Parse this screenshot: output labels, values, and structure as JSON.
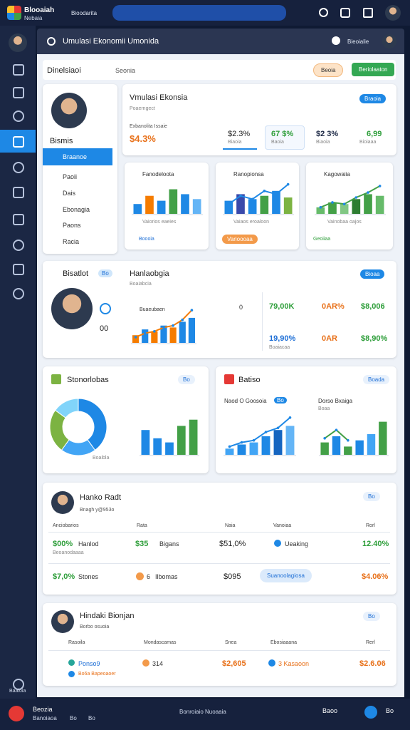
{
  "topbar": {
    "logo_title": "Blooaiah",
    "logo_sub": "Nebaia",
    "tab": "Bioodarita"
  },
  "header": {
    "title": "Umulasi Ekonomii Umonida",
    "user": "Bieoialie"
  },
  "toolbar": {
    "dropdown": "Dinelsiaoi",
    "search": "Seonia",
    "button1": "Beoia",
    "button2": "Beriolaaton"
  },
  "profile": {
    "name": "Bismis",
    "menu": [
      "Braanoe",
      "Paoii",
      "Dais",
      "Ebonagia",
      "Paons",
      "Racia"
    ]
  },
  "summary": {
    "title": "Vmulasi Ekonsia",
    "subtitle": "Poaerngect",
    "label": "Exbanolita Issaie",
    "value": "$4.3%",
    "button": "Braoia",
    "stats": [
      {
        "value": "$2.3%",
        "label": "Biaoia"
      },
      {
        "value": "67 $%",
        "label": "Baoia"
      },
      {
        "value": "$2 3%",
        "label": "Biaoia"
      },
      {
        "value": "6,99",
        "label": "Bioiaaa"
      }
    ]
  },
  "mini_charts": [
    {
      "title": "Fanodeloota",
      "footer": "Vaiorios eaeies",
      "tag": "Boooia",
      "ylim": [
        0,
        100
      ],
      "bars": [
        30,
        55,
        40,
        75,
        60,
        45
      ],
      "colors": [
        "#1e88e5",
        "#f57c00",
        "#1e88e5",
        "#43a047",
        "#1e88e5",
        "#64b5f6"
      ]
    },
    {
      "title": "Ranopionsa",
      "footer": "Vaiaos eroaloon",
      "tag": "Varioooaa",
      "ylim": [
        0,
        100
      ],
      "bars": [
        40,
        60,
        45,
        55,
        70,
        50
      ],
      "line": [
        30,
        55,
        45,
        70,
        60,
        90
      ],
      "colors": [
        "#1e88e5",
        "#3949ab",
        "#1e88e5",
        "#43a047",
        "#1e88e5",
        "#7cb342"
      ]
    },
    {
      "title": "Kagowaiia",
      "footer": "Vainobaa oajos",
      "tag": "Geoiiaa",
      "ylim": [
        0,
        100
      ],
      "bars": [
        20,
        35,
        30,
        45,
        60,
        55
      ],
      "line": [
        20,
        35,
        30,
        50,
        65,
        85
      ],
      "colors": [
        "#66bb6a",
        "#43a047",
        "#81c784",
        "#2e7d32",
        "#43a047",
        "#66bb6a"
      ]
    }
  ],
  "insight": {
    "name": "Bisatlot",
    "tag": "Bo",
    "title": "Hanlaobgia",
    "subtitle": "Boaiabcia",
    "chart_label": "Buaeubaen",
    "button": "Bioaa",
    "count": "00",
    "axis_mark": "0",
    "ylim": [
      0,
      100
    ],
    "bars": [
      20,
      35,
      30,
      45,
      40,
      55,
      65
    ],
    "line": [
      15,
      25,
      30,
      40,
      45,
      60,
      85
    ],
    "colors": [
      "#f57c00",
      "#1e88e5",
      "#f57c00",
      "#1e88e5",
      "#f57c00",
      "#1e88e5",
      "#1e88e5"
    ],
    "metrics": [
      [
        "79,00K",
        "0AR%",
        "$8,006"
      ],
      [
        "19,90%",
        "0AR",
        "$8,90%"
      ]
    ],
    "metric_label": "Boaiacaa"
  },
  "breakdown": {
    "title": "Stonorlobas",
    "tag": "Bo",
    "legend": "Boaibla",
    "donut": [
      40,
      20,
      25,
      15
    ],
    "donut_colors": [
      "#1e88e5",
      "#42a5f5",
      "#7cb342",
      "#81d4fa"
    ],
    "ylim": [
      0,
      100
    ],
    "bars": [
      60,
      40,
      30,
      70,
      85
    ],
    "colors": [
      "#1e88e5",
      "#1e88e5",
      "#1e88e5",
      "#43a047",
      "#43a047"
    ]
  },
  "trends": {
    "title": "Batiso",
    "tag": "Boada",
    "left_title": "Naod O Goosoia",
    "left_tag": "Bo",
    "right_title": "Dorso Bxaiga",
    "right_sub": "Boaa",
    "ylim": [
      0,
      100
    ],
    "left": {
      "bars": [
        15,
        25,
        30,
        45,
        60,
        70
      ],
      "line": [
        20,
        30,
        35,
        55,
        65,
        90
      ],
      "colors": [
        "#42a5f5",
        "#1e88e5",
        "#42a5f5",
        "#1e88e5",
        "#1565c0",
        "#64b5f6"
      ]
    },
    "right": {
      "bars": [
        30,
        45,
        20,
        35,
        50,
        80
      ],
      "line": [
        40,
        60,
        35
      ],
      "colors": [
        "#43a047",
        "#1e88e5",
        "#43a047",
        "#1e88e5",
        "#42a5f5",
        "#43a047"
      ]
    }
  },
  "report": {
    "name": "Hanko Radt",
    "sub": "Bnagh y@953o",
    "tag": "Bo",
    "columns": [
      "Anciobarios",
      "Rata",
      "Naia",
      "Vanoiaa",
      "Rorl"
    ],
    "rows": [
      [
        "$00%",
        "Hanlod",
        "$35",
        "Bigans",
        "$51,0%",
        "Ueaking",
        "12.40%"
      ],
      [
        "$7,0%",
        "Stones",
        "6",
        "Ilbomas",
        "$095",
        "Suanoolagiosa",
        "$4.06%"
      ]
    ],
    "row_sub": "Beoanodaaaa"
  },
  "ledger": {
    "name": "Hindaki Bionjan",
    "sub": "Borbo osuoia",
    "tag": "Bo",
    "columns": [
      "Rasoila",
      "Mondascamas",
      "Snea",
      "Ebosiaaana",
      "Rerl"
    ],
    "row": [
      "Ponso9",
      "314",
      "$2,605",
      "3 Kasaoon",
      "$2.6.06"
    ],
    "row_sub": "Bo6a Bapeoaoer"
  },
  "sidebar": {
    "footer": "Baaioia"
  },
  "bottombar": {
    "left_title": "Beozia",
    "left_sub": "Banoiaoa",
    "b1": "Bo",
    "b2": "Bo",
    "center": "Bonroiaio Nuoaaia",
    "right1": "Baoo",
    "right2": "Bo"
  }
}
